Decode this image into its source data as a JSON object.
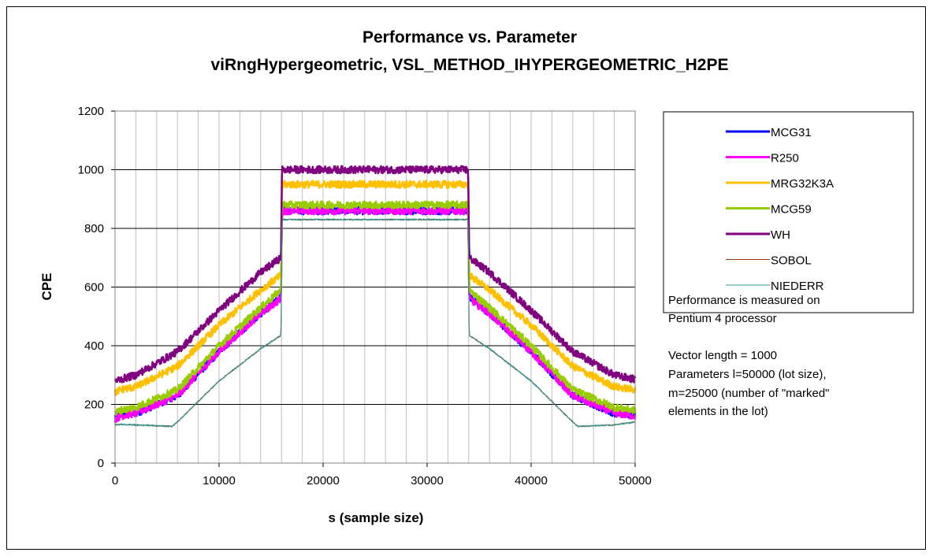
{
  "chart_data": {
    "type": "line",
    "title": "Performance vs. Parameter",
    "subtitle": "viRngHypergeometric, VSL_METHOD_IHYPERGEOMETRIC_H2PE",
    "xlabel": "s (sample size)",
    "ylabel": "CPE",
    "xlim": [
      0,
      50000
    ],
    "ylim": [
      0,
      1200
    ],
    "xticks": [
      "0",
      "10000",
      "20000",
      "30000",
      "40000",
      "50000"
    ],
    "yticks": [
      "0",
      "200",
      "400",
      "600",
      "800",
      "1000",
      "1200"
    ],
    "grid": "major y, minor x",
    "legend_position": "right",
    "series": [
      {
        "name": "MCG31",
        "color": "#0000FF",
        "x": [
          0,
          500,
          2000,
          6000,
          10000,
          14000,
          15950,
          16050,
          25000,
          33950,
          34050,
          36000,
          40000,
          44000,
          48000,
          50000
        ],
        "values": [
          160,
          165,
          170,
          230,
          380,
          510,
          570,
          860,
          860,
          860,
          570,
          510,
          380,
          230,
          170,
          165
        ]
      },
      {
        "name": "R250",
        "color": "#FF00FF",
        "x": [
          0,
          500,
          2000,
          6000,
          10000,
          14000,
          15950,
          16050,
          25000,
          33950,
          34050,
          36000,
          40000,
          44000,
          48000,
          50000
        ],
        "values": [
          150,
          160,
          170,
          230,
          380,
          510,
          560,
          860,
          860,
          860,
          560,
          510,
          380,
          230,
          170,
          160
        ]
      },
      {
        "name": "MRG32K3A",
        "color": "#FFC000",
        "x": [
          0,
          500,
          2000,
          6000,
          10000,
          14000,
          15950,
          16050,
          25000,
          33950,
          34050,
          36000,
          40000,
          44000,
          48000,
          50000
        ],
        "values": [
          240,
          250,
          260,
          330,
          470,
          590,
          640,
          950,
          950,
          950,
          640,
          590,
          470,
          330,
          260,
          250
        ]
      },
      {
        "name": "MCG59",
        "color": "#99CC00",
        "x": [
          0,
          500,
          2000,
          6000,
          10000,
          14000,
          15950,
          16050,
          25000,
          33950,
          34050,
          36000,
          40000,
          44000,
          48000,
          50000
        ],
        "values": [
          170,
          180,
          190,
          250,
          400,
          530,
          590,
          880,
          880,
          880,
          590,
          530,
          400,
          250,
          190,
          180
        ]
      },
      {
        "name": "WH",
        "color": "#800080",
        "x": [
          0,
          500,
          2000,
          6000,
          10000,
          14000,
          15950,
          16050,
          25000,
          33950,
          34050,
          36000,
          40000,
          44000,
          48000,
          50000
        ],
        "values": [
          280,
          285,
          300,
          380,
          520,
          650,
          700,
          1000,
          1000,
          1000,
          700,
          650,
          520,
          380,
          300,
          285
        ]
      },
      {
        "name": "SOBOL",
        "color": "#993300",
        "x": [
          0,
          500,
          2000,
          5500,
          6000,
          10000,
          14000,
          15950,
          16050,
          25000,
          33950,
          34050,
          36000,
          40000,
          44000,
          44500,
          48000,
          50000
        ],
        "values": [
          130,
          132,
          130,
          125,
          140,
          280,
          390,
          435,
          830,
          830,
          830,
          435,
          390,
          280,
          140,
          125,
          130,
          140
        ]
      },
      {
        "name": "NIEDERR",
        "color": "#339999",
        "x": [
          0,
          500,
          2000,
          5500,
          6000,
          10000,
          14000,
          15950,
          16050,
          25000,
          33950,
          34050,
          36000,
          40000,
          44000,
          44500,
          48000,
          50000
        ],
        "values": [
          130,
          132,
          130,
          125,
          140,
          280,
          390,
          435,
          830,
          830,
          830,
          435,
          390,
          280,
          140,
          125,
          130,
          140
        ]
      }
    ]
  },
  "notes": {
    "line1": "Performance is measured on",
    "line2": "Pentium 4 processor",
    "line3": "Vector length = 1000",
    "line4": "Parameters l=50000 (lot size),",
    "line5": "m=25000 (number of \"marked\"",
    "line6": "elements in the lot)"
  }
}
